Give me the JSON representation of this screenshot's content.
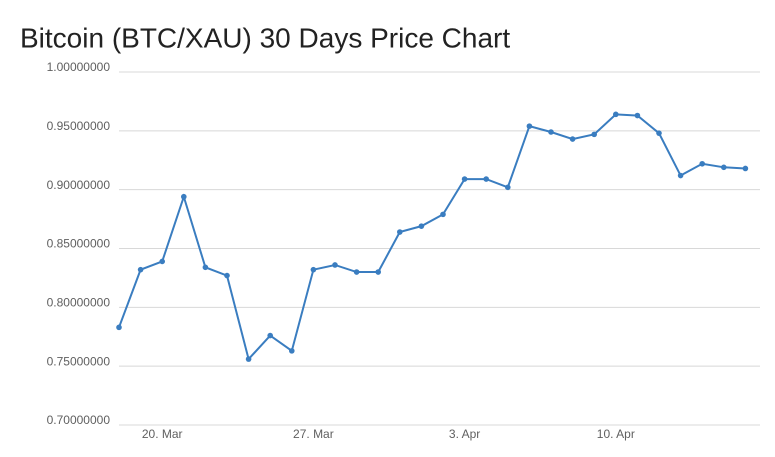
{
  "chart_data": {
    "type": "line",
    "title": "Bitcoin (BTC/XAU) 30 Days Price Chart",
    "x": [
      "18. Mar",
      "19. Mar",
      "20. Mar",
      "21. Mar",
      "22. Mar",
      "23. Mar",
      "24. Mar",
      "25. Mar",
      "26. Mar",
      "27. Mar",
      "28. Mar",
      "29. Mar",
      "30. Mar",
      "31. Mar",
      "1. Apr",
      "2. Apr",
      "3. Apr",
      "4. Apr",
      "5. Apr",
      "6. Apr",
      "7. Apr",
      "8. Apr",
      "9. Apr",
      "10. Apr",
      "11. Apr",
      "12. Apr",
      "13. Apr",
      "14. Apr",
      "15. Apr",
      "16. Apr"
    ],
    "series": [
      {
        "color": "#3a7dc0",
        "values": [
          0.783,
          0.832,
          0.839,
          0.894,
          0.834,
          0.827,
          0.756,
          0.776,
          0.763,
          0.832,
          0.836,
          0.83,
          0.83,
          0.864,
          0.869,
          0.879,
          0.909,
          0.909,
          0.902,
          0.954,
          0.949,
          0.943,
          0.947,
          0.964,
          0.963,
          0.948,
          0.912,
          0.922,
          0.919,
          0.918
        ]
      }
    ],
    "xticks": [
      "20. Mar",
      "27. Mar",
      "3. Apr",
      "10. Apr"
    ],
    "ylim": [
      0.7,
      1.0
    ],
    "yticks": [
      {
        "value": 0.7,
        "label": "0.70000000"
      },
      {
        "value": 0.75,
        "label": "0.75000000"
      },
      {
        "value": 0.8,
        "label": "0.80000000"
      },
      {
        "value": 0.85,
        "label": "0.85000000"
      },
      {
        "value": 0.9,
        "label": "0.90000000"
      },
      {
        "value": 0.95,
        "label": "0.95000000"
      },
      {
        "value": 1.0,
        "label": "1.00000000"
      }
    ],
    "grid": true
  }
}
